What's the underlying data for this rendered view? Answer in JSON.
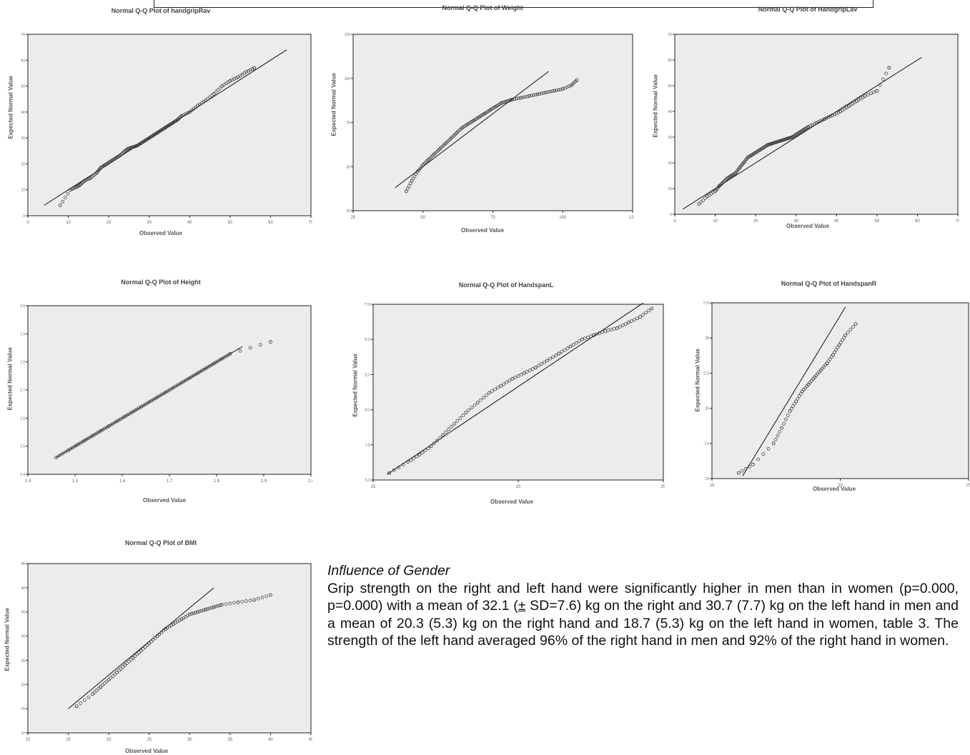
{
  "charts": [
    {
      "title": "Normal Q-Q Plot of handgripRav",
      "xlabel": "Observed Value",
      "ylabel": "Expected Normal Value",
      "xlim": [
        0,
        70
      ],
      "ylim": [
        0,
        70
      ],
      "x_ticks": [
        "0",
        "10",
        "20",
        "30",
        "40",
        "50",
        "60",
        "70"
      ],
      "y_ticks": [
        "0",
        "10",
        "20",
        "30",
        "40",
        "50",
        "60",
        "70"
      ],
      "line": [
        [
          4,
          4
        ],
        [
          64,
          64
        ]
      ],
      "points_x": [
        8,
        10.5,
        12,
        13,
        14,
        15.5,
        17,
        18,
        19,
        20,
        21,
        22,
        23,
        24,
        25,
        26,
        27,
        28,
        29,
        30,
        31,
        32,
        33,
        34,
        35,
        36,
        37,
        38,
        40,
        42,
        44,
        46,
        48,
        50,
        52,
        54,
        56
      ],
      "points_y": [
        4,
        10,
        11,
        12,
        13.5,
        14.5,
        16.5,
        18.5,
        19.5,
        20.5,
        21.5,
        22.5,
        23.5,
        25,
        26,
        26.5,
        27,
        28,
        29,
        30,
        31,
        32,
        33,
        34,
        35,
        36,
        37,
        38.5,
        40,
        42.5,
        44.5,
        47,
        50,
        52,
        53.5,
        55.5,
        57
      ]
    },
    {
      "title": "Normal Q-Q Plot of Weight",
      "xlabel": "Observed Value",
      "ylabel": "Expected Normal Value",
      "xlim": [
        25,
        125
      ],
      "ylim": [
        25,
        125
      ],
      "x_ticks": [
        "25",
        "50",
        "75",
        "100",
        "125"
      ],
      "y_ticks": [
        "25",
        "50",
        "75",
        "100",
        "125"
      ],
      "line": [
        [
          40,
          38
        ],
        [
          95,
          104
        ]
      ],
      "points_x": [
        44,
        46,
        48,
        50,
        52,
        54,
        56,
        58,
        60,
        62,
        64,
        66,
        68,
        70,
        72,
        74,
        76,
        78,
        80,
        82,
        85,
        88,
        91,
        94,
        97,
        100,
        103,
        105
      ],
      "points_y": [
        36,
        42,
        47,
        51,
        54,
        57,
        60,
        63,
        66,
        69,
        72,
        74,
        76,
        78,
        80,
        82,
        84,
        86,
        87,
        88,
        89,
        90,
        91,
        92,
        93,
        94,
        96,
        99
      ]
    },
    {
      "title": "Normal Q-Q Plot of HandgripLav",
      "xlabel": "Observed Value",
      "ylabel": "Expected Normal Value",
      "xlim": [
        0,
        70
      ],
      "ylim": [
        0,
        70
      ],
      "x_ticks": [
        "0",
        "10",
        "20",
        "30",
        "40",
        "50",
        "60",
        "70"
      ],
      "y_ticks": [
        "0",
        "10",
        "20",
        "30",
        "40",
        "50",
        "60",
        "70"
      ],
      "line": [
        [
          2,
          2
        ],
        [
          61,
          61
        ]
      ],
      "points_x": [
        6,
        8,
        10,
        11,
        12,
        13,
        14,
        15,
        16,
        17,
        18,
        19,
        20,
        21,
        22,
        23,
        24,
        25,
        26,
        27,
        28,
        29,
        30,
        31,
        32,
        33,
        35,
        37,
        39,
        41,
        43,
        45,
        47,
        50,
        53
      ],
      "points_y": [
        4,
        7,
        9,
        11,
        12.5,
        14,
        15,
        16,
        18,
        20,
        22,
        23,
        24,
        25,
        26,
        27,
        27.5,
        28,
        28.5,
        29,
        29.5,
        30,
        31,
        32,
        33,
        34,
        35.5,
        37,
        38.5,
        40,
        42,
        44,
        46,
        48,
        57
      ]
    },
    {
      "title": "Normal Q-Q Plot of Height",
      "xlabel": "Observed Value",
      "ylabel": "Expected Normal Value",
      "xlim": [
        1.4,
        2.1
      ],
      "ylim": [
        1.4,
        2.1
      ],
      "x_ticks": [
        "1.4",
        "1.5",
        "1.6",
        "1.7",
        "1.8",
        "1.9",
        "2.0"
      ],
      "y_ticks": [
        "1.4",
        "1.5",
        "1.6",
        "1.7",
        "1.8",
        "1.9",
        "2.0"
      ],
      "line": [
        [
          1.47,
          1.47
        ],
        [
          1.93,
          1.93
        ]
      ],
      "points_x": [
        1.47,
        1.5,
        1.52,
        1.54,
        1.56,
        1.58,
        1.6,
        1.62,
        1.64,
        1.66,
        1.68,
        1.7,
        1.72,
        1.74,
        1.76,
        1.78,
        1.8,
        1.82,
        1.84,
        1.86,
        1.88,
        1.9,
        2.0
      ],
      "points_y": [
        1.47,
        1.5,
        1.52,
        1.54,
        1.56,
        1.58,
        1.6,
        1.62,
        1.64,
        1.66,
        1.68,
        1.7,
        1.72,
        1.74,
        1.76,
        1.78,
        1.8,
        1.82,
        1.84,
        1.86,
        1.88,
        1.9,
        1.95
      ]
    },
    {
      "title": "Normal Q-Q Plot of HandspanL",
      "xlabel": "Observed Value",
      "ylabel": "Expected Normal Value",
      "xlim": [
        15,
        27.5
      ],
      "ylim": [
        15,
        27.5
      ],
      "x_ticks": [
        "15",
        "20",
        "25"
      ],
      "y_ticks": [
        "15.0",
        "17.5",
        "20.0",
        "22.5",
        "25.0",
        "27.5"
      ],
      "line": [
        [
          15.6,
          15.4
        ],
        [
          27,
          28
        ]
      ],
      "points_x": [
        15.7,
        16.5,
        17,
        17.5,
        18,
        18.5,
        19,
        19.5,
        20,
        20.5,
        21,
        21.5,
        22,
        22.5,
        23,
        23.5,
        24,
        24.5,
        25,
        25.5,
        26,
        26.5,
        27
      ],
      "points_y": [
        15.5,
        16.3,
        16.8,
        17.4,
        18.2,
        19,
        19.8,
        20.5,
        21.2,
        21.7,
        22.2,
        22.6,
        23,
        23.5,
        24,
        24.5,
        25,
        25.3,
        25.6,
        25.8,
        26.2,
        26.6,
        27.2
      ]
    },
    {
      "title": "Normal Q-Q Plot of HandspanR",
      "xlabel": "Observed Value",
      "ylabel": "Expected Normal Value",
      "xlim": [
        15,
        27.5
      ],
      "ylim": [
        15,
        27.5
      ],
      "x_ticks": [
        "15",
        "20",
        "25"
      ],
      "y_ticks": [
        "15",
        "17.5",
        "20",
        "22.5",
        "25",
        "27.5"
      ],
      "line": [
        [
          16.5,
          15.2
        ],
        [
          21.5,
          27.2
        ]
      ],
      "points_x": [
        16.3,
        17,
        18,
        18.4,
        18.8,
        19.1,
        19.4,
        19.7,
        20,
        20.3,
        20.6,
        20.9,
        21.2,
        21.5,
        22
      ],
      "points_y": [
        15.4,
        16,
        17.5,
        18.6,
        19.8,
        20.5,
        21.2,
        21.7,
        22.2,
        22.7,
        23.2,
        23.8,
        24.5,
        25.2,
        26
      ]
    },
    {
      "title": "Normal Q-Q Plot of BMI",
      "xlabel": "Observed Value",
      "ylabel": "Expected Normal Value",
      "xlim": [
        10,
        45
      ],
      "ylim": [
        10,
        45
      ],
      "x_ticks": [
        "10",
        "15",
        "20",
        "25",
        "30",
        "35",
        "40",
        "45"
      ],
      "y_ticks": [
        "10",
        "15",
        "20",
        "25",
        "30",
        "35",
        "40",
        "45"
      ],
      "line": [
        [
          15,
          15
        ],
        [
          33,
          40
        ]
      ],
      "points_x": [
        16,
        18,
        19,
        20,
        21,
        22,
        23,
        24,
        25,
        26,
        27,
        28,
        29,
        30,
        31,
        32,
        33,
        34,
        36,
        38,
        40
      ],
      "points_y": [
        15.5,
        18,
        19.5,
        21,
        22.5,
        24,
        25.5,
        27,
        28.5,
        30,
        31.5,
        32.5,
        33.5,
        34.5,
        35,
        35.5,
        36,
        36.5,
        37,
        37.5,
        38.5
      ]
    }
  ],
  "text": {
    "heading": "Influence of Gender",
    "para_1": "Grip strength on the right and left hand were significantly higher in men than in women (p=0.000, p=0.000) with a mean of 32.1 (",
    "plus_minus": "±",
    "para_2": " SD=7.6) kg on the right and 30.7 (7.7) kg on the left hand in men and a mean of 20.3 (5.3) kg on the right hand and 18.7 (5.3) kg on the left hand in women, table 3. The strength of the left hand averaged 96% of the right hand in men and 92% of the right hand in women."
  }
}
